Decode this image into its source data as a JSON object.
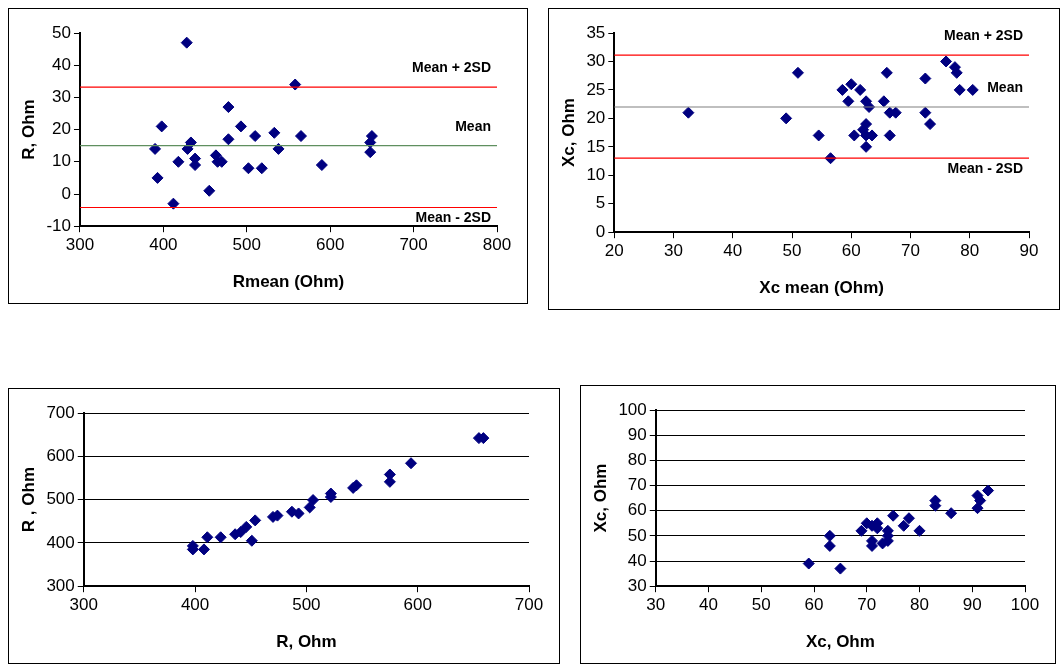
{
  "chart_data": [
    {
      "type": "scatter",
      "xlabel": "Rmean (Ohm)",
      "ylabel": "R, Ohm",
      "xlim": [
        300,
        800
      ],
      "xticks": [
        300,
        400,
        500,
        600,
        700,
        800
      ],
      "ylim": [
        -10,
        50
      ],
      "yticks": [
        -10,
        0,
        10,
        20,
        30,
        40,
        50
      ],
      "grid": false,
      "legend": false,
      "marker": "diamond",
      "series": [
        {
          "color": "#000080",
          "x": [
            390,
            393,
            398,
            412,
            418,
            428,
            429,
            433,
            438,
            438,
            455,
            463,
            465,
            470,
            478,
            478,
            493,
            502,
            510,
            518,
            533,
            538,
            558,
            565,
            590,
            648,
            650,
            648
          ],
          "values": [
            14,
            5,
            21,
            -3,
            10,
            47,
            14,
            16,
            11,
            9,
            1,
            12,
            10,
            10,
            17,
            27,
            21,
            8,
            18,
            8,
            19,
            14,
            34,
            18,
            9,
            16,
            18,
            13
          ]
        }
      ],
      "ref_lines": [
        {
          "axis": "y",
          "value": 33.2,
          "label": "Mean + 2SD",
          "color": "#ff0000"
        },
        {
          "axis": "y",
          "value": 15,
          "label": "Mean",
          "color": "#5f8f5f"
        },
        {
          "axis": "y",
          "value": -4.2,
          "label": "Mean - 2SD",
          "color": "#ff0000"
        }
      ]
    },
    {
      "type": "scatter",
      "xlabel": "Xc mean (Ohm)",
      "ylabel": "Xc, Ohm",
      "xlim": [
        20,
        90
      ],
      "xticks": [
        20,
        30,
        40,
        50,
        60,
        70,
        80,
        90
      ],
      "ylim": [
        0,
        35
      ],
      "yticks": [
        0,
        5,
        10,
        15,
        20,
        25,
        30,
        35
      ],
      "grid": false,
      "legend": false,
      "marker": "diamond",
      "series": [
        {
          "color": "#000080",
          "x": [
            32.5,
            49,
            51,
            54.5,
            56.5,
            58.5,
            59.5,
            60,
            60.5,
            61.5,
            62,
            62.5,
            62.5,
            62.5,
            62.5,
            63,
            63.5,
            65.5,
            66,
            66.5,
            66.5,
            67.5,
            72.5,
            72.5,
            73.3,
            76,
            77.5,
            77.8,
            78.3,
            80.5
          ],
          "values": [
            21,
            20,
            28,
            17,
            13,
            25,
            23,
            26,
            17,
            25,
            18,
            17,
            15,
            19,
            23,
            22,
            17,
            23,
            28,
            21,
            17,
            21,
            27,
            21,
            19,
            30,
            29,
            28,
            25,
            25
          ]
        }
      ],
      "ref_lines": [
        {
          "axis": "y",
          "value": 31.1,
          "label": "Mean + 2SD",
          "color": "#ff0000"
        },
        {
          "axis": "y",
          "value": 22,
          "label": "Mean",
          "color": "#808080"
        },
        {
          "axis": "y",
          "value": 13,
          "label": "Mean - 2SD",
          "color": "#ff0000"
        }
      ]
    },
    {
      "type": "scatter",
      "xlabel": "R, Ohm",
      "ylabel": "R , Ohm",
      "xlim": [
        300,
        700
      ],
      "xticks": [
        300,
        400,
        500,
        600,
        700
      ],
      "ylim": [
        300,
        700
      ],
      "yticks": [
        300,
        400,
        500,
        600,
        700
      ],
      "grid": "y",
      "legend": false,
      "marker": "diamond",
      "series": [
        {
          "color": "#000080",
          "x": [
            398,
            398,
            408,
            411,
            423,
            436,
            441,
            446,
            451,
            454,
            470,
            474,
            487,
            493,
            503,
            506,
            522,
            522,
            542,
            545,
            575,
            575,
            594,
            655,
            659
          ],
          "values": [
            393,
            385,
            385,
            413,
            413,
            420,
            425,
            437,
            405,
            452,
            460,
            463,
            472,
            468,
            482,
            499,
            514,
            506,
            527,
            533,
            558,
            541,
            584,
            642,
            642
          ]
        }
      ]
    },
    {
      "type": "scatter",
      "xlabel": "Xc, Ohm",
      "ylabel": "Xc, Ohm",
      "xlim": [
        30,
        100
      ],
      "xticks": [
        30,
        40,
        50,
        60,
        70,
        80,
        90,
        100
      ],
      "ylim": [
        30,
        100
      ],
      "yticks": [
        30,
        40,
        50,
        60,
        70,
        80,
        90,
        100
      ],
      "grid": "y",
      "legend": false,
      "marker": "diamond",
      "series": [
        {
          "color": "#000080",
          "x": [
            59,
            63,
            63,
            65,
            69,
            70,
            71,
            71,
            71,
            72,
            72,
            73,
            74,
            74,
            74,
            75,
            77,
            78,
            80,
            83,
            83,
            86,
            91,
            91,
            93,
            91.5
          ],
          "values": [
            39,
            50,
            46,
            37,
            52,
            55,
            54,
            48,
            46,
            55,
            53,
            47,
            52,
            50,
            48,
            58,
            54,
            57,
            52,
            64,
            62,
            59,
            66,
            61,
            68,
            64
          ]
        }
      ]
    }
  ]
}
